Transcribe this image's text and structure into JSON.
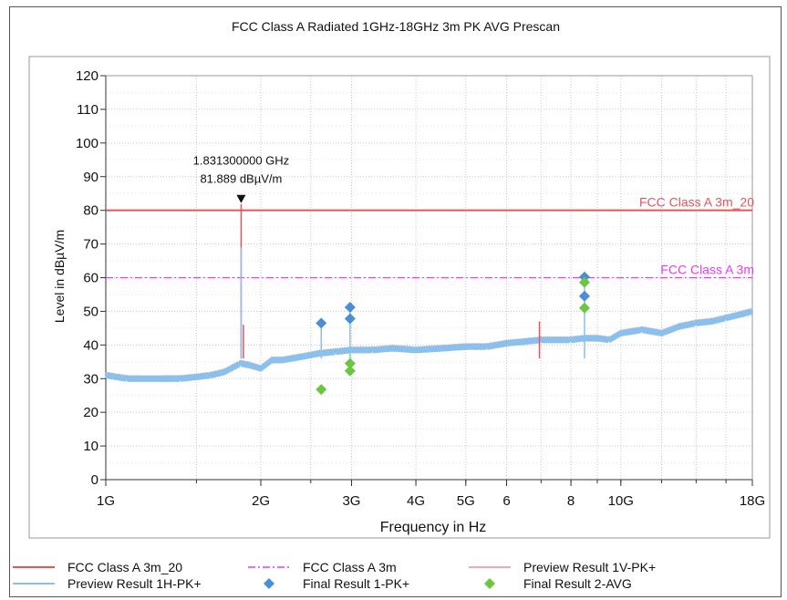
{
  "chart_data": {
    "type": "line",
    "title": "FCC Class A Radiated 1GHz-18GHz 3m PK AVG Prescan",
    "xlabel": "Frequency in Hz",
    "ylabel": "Level in dBµV/m",
    "xscale": "log",
    "xlim": [
      1,
      18
    ],
    "ylim": [
      0,
      120
    ],
    "grid": true,
    "x_ticks": [
      {
        "v": 1,
        "label": "1G"
      },
      {
        "v": 2,
        "label": "2G"
      },
      {
        "v": 3,
        "label": "3G"
      },
      {
        "v": 4,
        "label": "4G"
      },
      {
        "v": 5,
        "label": "5G"
      },
      {
        "v": 6,
        "label": "6"
      },
      {
        "v": 8,
        "label": "8"
      },
      {
        "v": 10,
        "label": "10G"
      },
      {
        "v": 18,
        "label": "18G"
      }
    ],
    "y_ticks": [
      0,
      10,
      20,
      30,
      40,
      50,
      60,
      70,
      80,
      90,
      100,
      110,
      120
    ],
    "limit_lines": [
      {
        "name": "FCC Class A 3m_20",
        "value": 80,
        "color": "#e8545a",
        "style": "solid"
      },
      {
        "name": "FCC Class A 3m",
        "value": 60,
        "color": "#e83cf0",
        "style": "dashdot"
      }
    ],
    "marker": {
      "x": 1.8313,
      "y": 81.889,
      "line1": "1.831300000 GHz",
      "line2": "81.889 dBµV/m"
    },
    "series": [
      {
        "name": "Preview Result 1V-PK+",
        "color": "#f08ca4",
        "x": [
          1.0,
          1.1,
          1.2,
          1.3,
          1.4,
          1.5,
          1.6,
          1.7,
          1.8,
          1.83,
          1.9,
          2.0,
          2.1,
          2.2,
          2.4,
          2.6,
          2.8,
          3.0,
          3.3,
          3.6,
          4.0,
          4.5,
          5.0,
          5.5,
          6.0,
          6.5,
          7.0,
          7.5,
          8.0,
          8.5,
          9.0,
          9.5,
          10.0,
          11.0,
          12.0,
          13.0,
          14.0,
          15.0,
          16.0,
          17.0,
          18.0
        ],
        "y": [
          31.5,
          30.5,
          30.0,
          30.5,
          30.5,
          31.0,
          31.5,
          32.5,
          34.5,
          35.0,
          34.5,
          33.5,
          36.0,
          36.0,
          37.0,
          38.0,
          38.5,
          39.0,
          39.0,
          39.5,
          39.0,
          39.5,
          40.0,
          40.0,
          41.0,
          41.5,
          42.0,
          42.0,
          42.0,
          42.5,
          42.5,
          42.0,
          44.0,
          45.0,
          44.0,
          46.0,
          47.0,
          47.5,
          48.5,
          49.5,
          50.5
        ]
      },
      {
        "name": "Preview Result 1H-PK+",
        "color": "#8cc0ec",
        "x": [
          1.0,
          1.1,
          1.2,
          1.3,
          1.4,
          1.5,
          1.6,
          1.7,
          1.8,
          1.83,
          1.9,
          2.0,
          2.1,
          2.2,
          2.4,
          2.6,
          2.8,
          3.0,
          3.3,
          3.6,
          4.0,
          4.5,
          5.0,
          5.5,
          6.0,
          6.5,
          7.0,
          7.5,
          8.0,
          8.5,
          9.0,
          9.5,
          10.0,
          11.0,
          12.0,
          13.0,
          14.0,
          15.0,
          16.0,
          17.0,
          18.0
        ],
        "y": [
          31.0,
          30.0,
          30.0,
          30.0,
          30.0,
          30.5,
          31.0,
          32.0,
          34.0,
          34.5,
          34.0,
          33.0,
          35.5,
          35.5,
          36.5,
          37.5,
          38.0,
          38.5,
          38.5,
          39.0,
          38.5,
          39.0,
          39.5,
          39.5,
          40.5,
          41.0,
          41.5,
          41.5,
          41.5,
          42.0,
          42.0,
          41.5,
          43.5,
          44.5,
          43.5,
          45.5,
          46.5,
          47.0,
          48.0,
          49.0,
          50.0
        ]
      }
    ],
    "spikes": [
      {
        "x": 1.8313,
        "y": 81.889,
        "color": "#e8545a"
      },
      {
        "x": 1.8313,
        "y": 69,
        "color": "#8cc0ec"
      },
      {
        "x": 1.85,
        "y": 46,
        "color": "#e8545a"
      },
      {
        "x": 2.62,
        "y": 46,
        "color": "#8cc0ec"
      },
      {
        "x": 2.98,
        "y": 51,
        "color": "#8cc0ec"
      },
      {
        "x": 6.95,
        "y": 47,
        "color": "#e8545a"
      },
      {
        "x": 8.5,
        "y": 59,
        "color": "#8cc0ec"
      }
    ],
    "final_pk": {
      "name": "Final Result 1-PK+",
      "color": "#4a8fd6",
      "points": [
        [
          2.62,
          46.5
        ],
        [
          2.98,
          51.2
        ],
        [
          2.98,
          47.8
        ],
        [
          8.5,
          60.2
        ],
        [
          8.5,
          54.5
        ]
      ]
    },
    "final_avg": {
      "name": "Final Result 2-AVG",
      "color": "#6cc640",
      "points": [
        [
          2.62,
          26.8
        ],
        [
          2.98,
          34.5
        ],
        [
          2.98,
          32.3
        ],
        [
          8.5,
          58.6
        ],
        [
          8.5,
          51.0
        ]
      ]
    },
    "legend": {
      "placement": "bottom",
      "entries": [
        {
          "label": "FCC Class A 3m_20"
        },
        {
          "label": "FCC Class A 3m"
        },
        {
          "label": "Preview Result 1V-PK+"
        },
        {
          "label": "Preview Result 1H-PK+"
        },
        {
          "label": "Final Result 1-PK+"
        },
        {
          "label": "Final Result 2-AVG"
        }
      ]
    }
  }
}
